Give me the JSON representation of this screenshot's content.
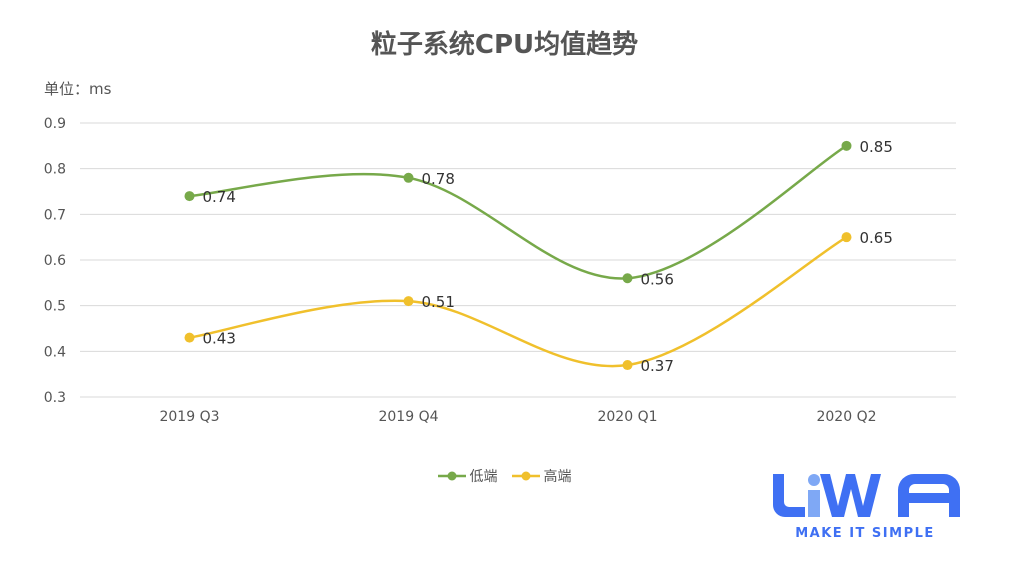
{
  "chart_data": {
    "type": "line",
    "title": "粒子系统CPU均值趋势",
    "unit_label": "单位：ms",
    "categories": [
      "2019 Q3",
      "2019 Q4",
      "2020 Q1",
      "2020 Q2"
    ],
    "series": [
      {
        "name": "低端",
        "values": [
          0.74,
          0.78,
          0.56,
          0.85
        ],
        "color": "#77a94a"
      },
      {
        "name": "高端",
        "values": [
          0.43,
          0.51,
          0.37,
          0.65
        ],
        "color": "#f0c02c"
      }
    ],
    "ylim": [
      0.3,
      0.9
    ],
    "yticks": [
      "0.3",
      "0.4",
      "0.5",
      "0.6",
      "0.7",
      "0.8",
      "0.9"
    ],
    "grid": true,
    "smooth": true,
    "legend": "bottom-center",
    "data_labels": true
  },
  "logo": {
    "text": "LiWA",
    "slogan": "MAKE IT SIMPLE",
    "color": "#3f70f3",
    "accent": "#7fa8f5"
  }
}
